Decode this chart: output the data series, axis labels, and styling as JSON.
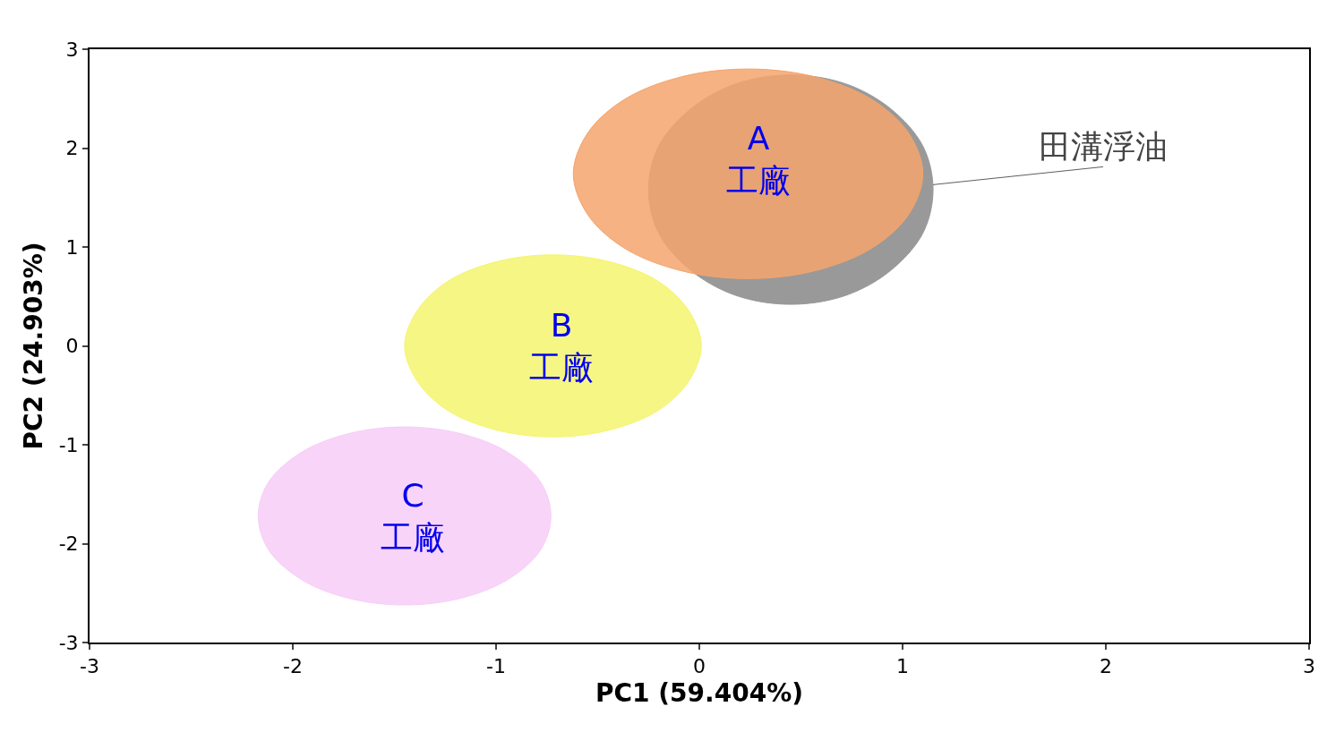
{
  "chart_data": {
    "type": "area",
    "xlabel": "PC1 (59.404%)",
    "ylabel": "PC2 (24.903%)",
    "xlim": [
      -3,
      3
    ],
    "ylim": [
      -3,
      3
    ],
    "xticks": [
      -3,
      -2,
      -1,
      0,
      1,
      2,
      3
    ],
    "yticks": [
      -3,
      -2,
      -1,
      0,
      1,
      2,
      3
    ],
    "legend": false,
    "series": [
      {
        "name": "田溝浮油",
        "color": "#999999",
        "x": [
          1.15,
          1.1,
          0.94,
          0.72,
          0.45,
          0.18,
          -0.04,
          -0.2,
          -0.25,
          -0.2,
          -0.04,
          0.18,
          0.45,
          0.72,
          0.94,
          1.1,
          1.15
        ],
        "values": [
          1.58,
          2.02,
          2.4,
          2.65,
          2.74,
          2.65,
          2.4,
          2.02,
          1.58,
          1.14,
          0.76,
          0.51,
          0.42,
          0.51,
          0.76,
          1.14,
          1.58
        ]
      },
      {
        "name": "A\n工廠",
        "color": "#f4a46c",
        "x": [
          1.1,
          1.03,
          0.85,
          0.57,
          0.24,
          -0.09,
          -0.37,
          -0.55,
          -0.62,
          -0.55,
          -0.37,
          -0.09,
          0.24,
          0.57,
          0.85,
          1.03,
          1.1
        ],
        "values": [
          1.74,
          2.15,
          2.49,
          2.72,
          2.8,
          2.72,
          2.49,
          2.15,
          1.74,
          1.33,
          0.99,
          0.76,
          0.68,
          0.76,
          0.99,
          1.33,
          1.74
        ]
      },
      {
        "name": "B\n工廠",
        "color": "#f5f56e",
        "x": [
          0.01,
          -0.05,
          -0.2,
          -0.44,
          -0.72,
          -1.0,
          -1.24,
          -1.39,
          -1.45,
          -1.39,
          -1.24,
          -1.0,
          -0.72,
          -0.44,
          -0.2,
          -0.05,
          0.01
        ],
        "values": [
          0,
          0.35,
          0.65,
          0.85,
          0.92,
          0.85,
          0.65,
          0.35,
          0,
          -0.35,
          -0.65,
          -0.85,
          -0.92,
          -0.85,
          -0.65,
          -0.35,
          0
        ]
      },
      {
        "name": "C\n工廠",
        "color": "#f8ccf8",
        "x": [
          -0.73,
          -0.78,
          -0.94,
          -1.17,
          -1.45,
          -1.73,
          -1.96,
          -2.12,
          -2.17,
          -2.12,
          -1.96,
          -1.73,
          -1.45,
          -1.17,
          -0.94,
          -0.78,
          -0.73
        ],
        "values": [
          -1.72,
          -1.38,
          -1.08,
          -0.89,
          -0.82,
          -0.89,
          -1.08,
          -1.38,
          -1.72,
          -2.06,
          -2.36,
          -2.55,
          -2.62,
          -2.55,
          -2.36,
          -2.06,
          -1.72
        ]
      }
    ]
  }
}
